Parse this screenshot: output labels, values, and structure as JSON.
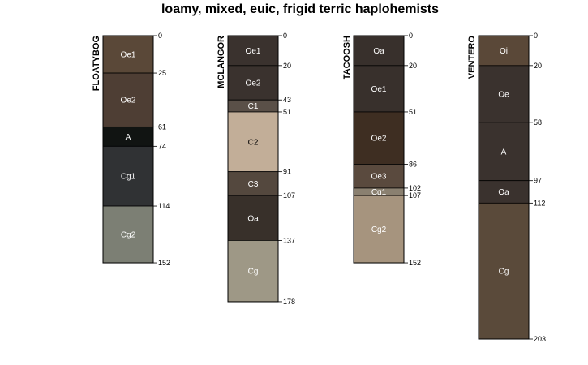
{
  "chart_data": {
    "type": "soil-profile-sketch",
    "title": "loamy, mixed, euic, frigid terric haplohemists",
    "max_depth_scale": 203,
    "profiles": [
      {
        "name": "FLOATYBOG",
        "horizons": [
          {
            "name": "Oe1",
            "top": 0,
            "bottom": 25,
            "color": "#5a4838",
            "label_color": "#ffffff"
          },
          {
            "name": "Oe2",
            "top": 25,
            "bottom": 61,
            "color": "#4e3e34",
            "label_color": "#ffffff"
          },
          {
            "name": "A",
            "top": 61,
            "bottom": 74,
            "color": "#111412",
            "label_color": "#ffffff"
          },
          {
            "name": "Cg1",
            "top": 74,
            "bottom": 114,
            "color": "#303234",
            "label_color": "#ffffff"
          },
          {
            "name": "Cg2",
            "top": 114,
            "bottom": 152,
            "color": "#7c7f74",
            "label_color": "#ffffff"
          }
        ]
      },
      {
        "name": "MCLANGOR",
        "horizons": [
          {
            "name": "Oe1",
            "top": 0,
            "bottom": 20,
            "color": "#3a322e",
            "label_color": "#ffffff"
          },
          {
            "name": "Oe2",
            "top": 20,
            "bottom": 43,
            "color": "#3a322e",
            "label_color": "#ffffff"
          },
          {
            "name": "C1",
            "top": 43,
            "bottom": 51,
            "color": "#5a5048",
            "label_color": "#ffffff"
          },
          {
            "name": "C2",
            "top": 51,
            "bottom": 91,
            "color": "#c2ae98",
            "label_color": "#000000"
          },
          {
            "name": "C3",
            "top": 91,
            "bottom": 107,
            "color": "#54483e",
            "label_color": "#ffffff"
          },
          {
            "name": "Oa",
            "top": 107,
            "bottom": 137,
            "color": "#38302a",
            "label_color": "#ffffff"
          },
          {
            "name": "Cg",
            "top": 137,
            "bottom": 178,
            "color": "#9e9886",
            "label_color": "#ffffff"
          }
        ]
      },
      {
        "name": "TACOOSH",
        "horizons": [
          {
            "name": "Oa",
            "top": 0,
            "bottom": 20,
            "color": "#38302c",
            "label_color": "#ffffff"
          },
          {
            "name": "Oe1",
            "top": 20,
            "bottom": 51,
            "color": "#38302c",
            "label_color": "#ffffff"
          },
          {
            "name": "Oe2",
            "top": 51,
            "bottom": 86,
            "color": "#3e2e22",
            "label_color": "#ffffff"
          },
          {
            "name": "Oe3",
            "top": 86,
            "bottom": 102,
            "color": "#5a4a3e",
            "label_color": "#ffffff"
          },
          {
            "name": "Cg1",
            "top": 102,
            "bottom": 107,
            "color": "#8a8070",
            "label_color": "#ffffff"
          },
          {
            "name": "Cg2",
            "top": 107,
            "bottom": 152,
            "color": "#a6947e",
            "label_color": "#ffffff"
          }
        ]
      },
      {
        "name": "VENTERO",
        "horizons": [
          {
            "name": "Oi",
            "top": 0,
            "bottom": 20,
            "color": "#5a4838",
            "label_color": "#ffffff"
          },
          {
            "name": "Oe",
            "top": 20,
            "bottom": 58,
            "color": "#3a322e",
            "label_color": "#ffffff"
          },
          {
            "name": "A",
            "top": 58,
            "bottom": 97,
            "color": "#3a322e",
            "label_color": "#ffffff"
          },
          {
            "name": "Oa",
            "top": 97,
            "bottom": 112,
            "color": "#3a322e",
            "label_color": "#ffffff"
          },
          {
            "name": "Cg",
            "top": 112,
            "bottom": 203,
            "color": "#5a4a3a",
            "label_color": "#ffffff"
          }
        ]
      }
    ]
  }
}
